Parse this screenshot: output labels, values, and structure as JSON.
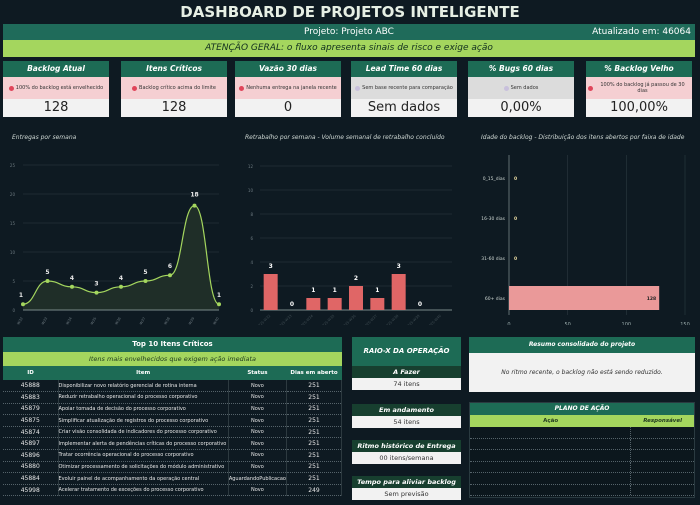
{
  "header": {
    "title": "DASHBOARD DE PROJETOS INTELIGENTE",
    "project": "Projeto: Projeto ABC",
    "updated": "Atualizado em: 46064",
    "alert": "ATENÇÃO GERAL: o fluxo apresenta sinais de risco e exige ação"
  },
  "colors": {
    "bg": "#0e1a22",
    "teal": "#1d6b55",
    "lime": "#a4d65e",
    "alert_red": "#f5cfd2",
    "bar_red": "#e06666",
    "bar_pink": "#ea9999",
    "line": "#a4d65e"
  },
  "kpis": [
    {
      "title": "Backlog Atual",
      "message": "100% do backlog está envelhecido",
      "status": "red",
      "value": "128"
    },
    {
      "title": "Itens Críticos",
      "message": "Backlog crítico acima do limite",
      "status": "red",
      "value": "128"
    },
    {
      "title": "Vazão 30 dias",
      "message": "Nenhuma entrega na janela recente",
      "status": "red",
      "value": "0"
    },
    {
      "title": "Lead Time 60 dias",
      "message": "Sem base recente para comparação",
      "status": "gray",
      "value": "Sem dados"
    },
    {
      "title": "% Bugs 60 dias",
      "message": "Sem dados",
      "status": "gray",
      "value": "0,00%"
    },
    {
      "title": "% Backlog Velho",
      "message": "100% do backlog já passou de 30 dias",
      "status": "red",
      "value": "100,00%"
    }
  ],
  "chart_data": [
    {
      "type": "area",
      "title": "Entregas por semana",
      "categories": [
        "2025-W32",
        "2025-W33",
        "2025-W34",
        "2025-W35",
        "2025-W36",
        "2025-W37",
        "2025-W38",
        "2025-W39",
        "2025-W40"
      ],
      "values": [
        1,
        5,
        4,
        3,
        4,
        5,
        6,
        18,
        1
      ],
      "ylim": [
        0,
        25
      ],
      "yticks": [
        0,
        5,
        10,
        15,
        20,
        25
      ],
      "grid": true
    },
    {
      "type": "bar",
      "title": "Retrabalho por semana - Volume semanal de retrabalho concluído",
      "categories": [
        "2025-W32",
        "2025-W33",
        "2025-W34",
        "2025-W35",
        "2025-W36",
        "2025-W37",
        "2025-W38",
        "2025-W39",
        "2025-W40"
      ],
      "values": [
        3,
        0,
        1,
        1,
        2,
        1,
        3,
        0,
        null
      ],
      "ylim": [
        0,
        12
      ],
      "yticks": [
        0,
        2,
        4,
        6,
        8,
        10,
        12
      ],
      "grid": true
    },
    {
      "type": "bar",
      "orientation": "horizontal",
      "title": "Idade do backlog - Distribuição dos itens abertos por faixa de idade",
      "categories": [
        "0_15_dias",
        "16-30 dias",
        "31-60 dias",
        "60+ dias"
      ],
      "values": [
        0,
        0,
        0,
        128
      ],
      "xlim": [
        0,
        150
      ],
      "xticks": [
        0,
        50,
        100,
        150
      ],
      "grid": true
    }
  ],
  "top10": {
    "title": "Top 10 Itens Críticos",
    "subtitle": "Itens mais envelhecidos que exigem ação imediata",
    "columns": [
      "ID",
      "Item",
      "Status",
      "Dias em aberto"
    ],
    "rows": [
      [
        "45888",
        "Disponibilizar novo relatório gerencial de rotina interna",
        "Novo",
        "251"
      ],
      [
        "45883",
        "Reduzir retrabalho operacional do processo corporativo",
        "Novo",
        "251"
      ],
      [
        "45879",
        "Apoiar tomada de decisão do processo corporativo",
        "Novo",
        "251"
      ],
      [
        "45875",
        "Simplificar atualização de registros do processo corporativo",
        "Novo",
        "251"
      ],
      [
        "45874",
        "Criar visão consolidada de indicadores do processo corporativo",
        "Novo",
        "251"
      ],
      [
        "45897",
        "Implementar alerta de pendências críticas do processo corporativo",
        "Novo",
        "251"
      ],
      [
        "45896",
        "Tratar ocorrência operacional do processo corporativo",
        "Novo",
        "251"
      ],
      [
        "45880",
        "Otimizar processamento de solicitações do módulo administrativo",
        "Novo",
        "251"
      ],
      [
        "45884",
        "Evoluir painel de acompanhamento da operação central",
        "AguardandoPublicacao",
        "251"
      ],
      [
        "45998",
        "Acelerar tratamento de exceções do processo corporativo",
        "Novo",
        "249"
      ]
    ]
  },
  "raiox": {
    "title": "RAIO-X DA OPERAÇÃO",
    "items": [
      {
        "label": "A Fazer",
        "value": "74 itens"
      },
      {
        "label": "Em andamento",
        "value": "54 itens"
      },
      {
        "label": "Ritmo histórico de Entrega",
        "value": "00 itens/semana"
      },
      {
        "label": "Tempo para aliviar backlog",
        "value": "Sem previsão"
      }
    ]
  },
  "resumo": {
    "title": "Resumo consolidado do projeto",
    "text": "No ritmo recente, o backlog não está sendo reduzido."
  },
  "plano": {
    "title": "PLANO DE AÇÃO",
    "columns": [
      "Ação",
      "Responsável"
    ]
  }
}
